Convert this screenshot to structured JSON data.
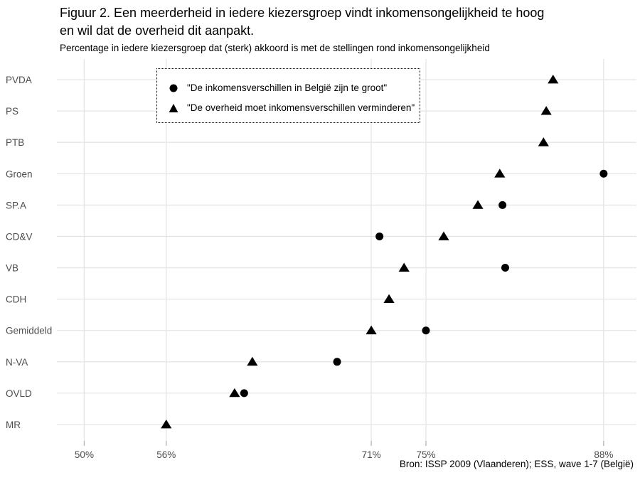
{
  "page": {
    "header": {
      "title_lines": [
        "Figuur 2. Een meerderheid in iedere kiezersgroep vindt inkomensongelijkheid te hoog",
        "en wil dat de overheid dit aanpakt."
      ]
    }
  },
  "colors": {
    "point": "#000000",
    "grid": "#e5e5e5",
    "tick": "#b3b3b3",
    "axis_text": "#4d4d4d",
    "text": "#000000",
    "background": "#ffffff"
  },
  "chart_data": {
    "type": "scatter",
    "variant": "horizontal-dot-plot",
    "title": "Figuur 2. Een meerderheid in iedere kiezersgroep vindt inkomensongelijkheid te hoog en wil dat de overheid dit aanpakt.",
    "subtitle": "Percentage in iedere kiezersgroep dat (sterk) akkoord is met de stellingen rond inkomensongelijkheid",
    "source": "Bron: ISSP 2009 (Vlaanderen); ESS, wave 1-7 (België)",
    "categories": [
      "PVDA",
      "PS",
      "PTB",
      "Groen",
      "SP.A",
      "CD&V",
      "VB",
      "CDH",
      "Gemiddeld",
      "N-VA",
      "OVLD",
      "MR"
    ],
    "series": [
      {
        "name": "\"De inkomensverschillen in België zijn te groot\"",
        "marker": "circle",
        "values": [
          null,
          null,
          null,
          88,
          80.6,
          71.6,
          80.8,
          null,
          75,
          68.5,
          61.7,
          null
        ]
      },
      {
        "name": "\"De overheid moet inkomensverschillen verminderen\"",
        "marker": "triangle",
        "values": [
          84.3,
          83.8,
          83.6,
          80.4,
          78.8,
          76.3,
          73.4,
          72.3,
          71,
          62.3,
          61,
          56
        ]
      }
    ],
    "x_ticks": [
      50,
      56,
      71,
      75,
      88
    ],
    "x_tick_labels": [
      "50%",
      "56%",
      "71%",
      "75%",
      "88%"
    ],
    "xlim": [
      48,
      90.4
    ],
    "xlabel": "",
    "ylabel": "",
    "grid": true,
    "legend_position": "top-left-inside"
  }
}
